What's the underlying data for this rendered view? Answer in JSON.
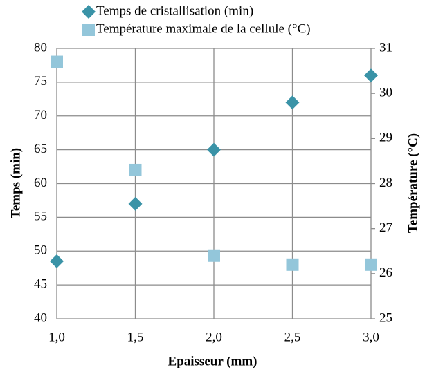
{
  "chart_data": {
    "type": "scatter",
    "x_label": "Epaisseur (mm)",
    "y_label": "Temps (min)",
    "y2_label": "Température (°C)",
    "x": [
      1,
      1.5,
      2,
      2.5,
      3
    ],
    "series": [
      {
        "name": "Temps de cristallisation (min)",
        "color": "#3a93a7",
        "marker": "diamond",
        "values": [
          48.5,
          57,
          65,
          72,
          76
        ]
      },
      {
        "name": "Température maximale de la cellule (°C)",
        "color": "#93c6da",
        "marker": "square",
        "axis": "y2",
        "values": [
          30.7,
          28.3,
          26.4,
          26.2,
          26.2
        ]
      }
    ],
    "xlim": [
      1,
      3
    ],
    "xticks": [
      {
        "value": 1,
        "label": "1,0"
      },
      {
        "value": 1.5,
        "label": "1,5"
      },
      {
        "value": 2,
        "label": "2,0"
      },
      {
        "value": 2.5,
        "label": "2,5"
      },
      {
        "value": 3,
        "label": "3,0"
      }
    ],
    "ylim": [
      40,
      80
    ],
    "yticks": [
      40,
      45,
      50,
      55,
      60,
      65,
      70,
      75,
      80
    ],
    "y2lim": [
      25,
      31
    ],
    "y2ticks": [
      25,
      26,
      27,
      28,
      29,
      30,
      31
    ],
    "grid": true,
    "legend": "top"
  }
}
